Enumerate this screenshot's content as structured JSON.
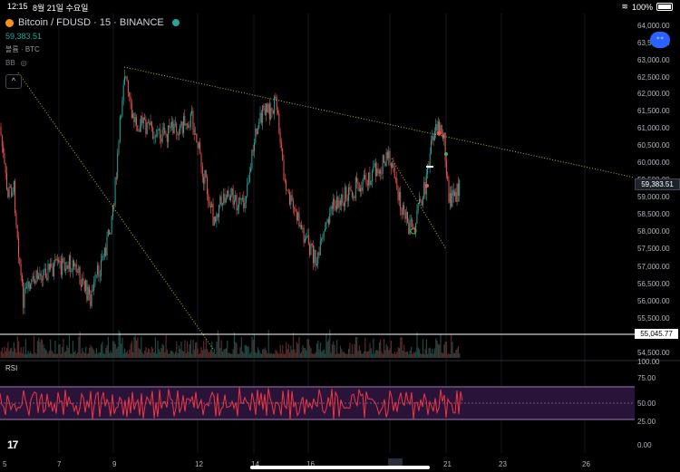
{
  "status_bar": {
    "time": "12:15",
    "date": "8월 21일 수요일",
    "battery": "100%"
  },
  "header": {
    "symbol": "Bitcoin / FDUSD · 15 · BINANCE",
    "price": "59,383.51",
    "volume_label": "볼륨 · BTC",
    "bb_label": "BB"
  },
  "rsi_label": "RSI",
  "price_axis": [
    "64,000.00",
    "63,500.00",
    "63,000.00",
    "62,500.00",
    "62,000.00",
    "61,500.00",
    "61,000.00",
    "60,500.00",
    "60,000.00",
    "59,500.00",
    "59,000.00",
    "58,500.00",
    "58,000.00",
    "57,500.00",
    "57,000.00",
    "56,500.00",
    "56,000.00",
    "55,500.00",
    "55,000.00",
    "54,500.00"
  ],
  "rsi_axis": [
    "100.00",
    "75.00",
    "50.00",
    "25.00",
    "0.00"
  ],
  "time_axis": [
    "5",
    "7",
    "9",
    "12",
    "14",
    "16",
    "19",
    "21",
    "23",
    "26"
  ],
  "current_price_tag": "59,383.51",
  "horizontal_line_tag": "55,045.77",
  "colors": {
    "up": "#26a69a",
    "down": "#ef5350",
    "background": "#000000",
    "rsi": "#f23645",
    "rsi_band": "#2a1338"
  }
}
